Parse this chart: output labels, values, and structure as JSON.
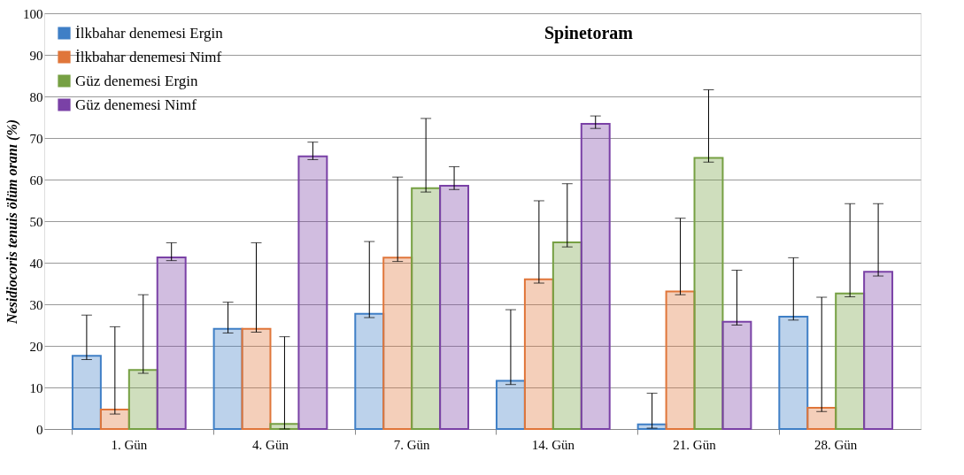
{
  "chart_data": {
    "type": "bar",
    "title": "Spinetoram",
    "ylabel": "Nesidiocoris tenuis ölüm oranı (%)",
    "categories": [
      "1. Gün",
      "4. Gün",
      "7. Gün",
      "14. Gün",
      "21. Gün",
      "28. Gün"
    ],
    "series": [
      {
        "name": "İlkbahar denemesi Ergin",
        "color": "#3f7fc6",
        "values": [
          17.6,
          24.1,
          27.7,
          11.6,
          1.1,
          27.0
        ],
        "errors": [
          [
            16.7,
            27.4
          ],
          [
            23.1,
            30.5
          ],
          [
            26.8,
            45.1
          ],
          [
            10.7,
            28.7
          ],
          [
            0.2,
            8.6
          ],
          [
            26.2,
            41.2
          ]
        ]
      },
      {
        "name": "İlkbahar denemesi Nimf",
        "color": "#e0763a",
        "values": [
          4.7,
          24.1,
          41.2,
          36.0,
          33.1,
          5.1
        ],
        "errors": [
          [
            3.6,
            24.6
          ],
          [
            23.3,
            44.8
          ],
          [
            40.3,
            60.6
          ],
          [
            35.1,
            54.9
          ],
          [
            32.3,
            50.7
          ],
          [
            4.2,
            31.7
          ]
        ]
      },
      {
        "name": "Güz denemesi Ergin",
        "color": "#76a043",
        "values": [
          14.2,
          1.2,
          57.9,
          44.9,
          65.2,
          32.6
        ],
        "errors": [
          [
            13.4,
            32.3
          ],
          [
            0,
            22.2
          ],
          [
            57.0,
            74.7
          ],
          [
            43.8,
            59.0
          ],
          [
            64.2,
            81.6
          ],
          [
            31.8,
            54.2
          ]
        ]
      },
      {
        "name": "Güz denemesi Nimf",
        "color": "#7a41a6",
        "values": [
          41.3,
          65.6,
          58.5,
          73.4,
          25.8,
          37.8
        ],
        "errors": [
          [
            40.5,
            44.8
          ],
          [
            64.8,
            69.0
          ],
          [
            57.6,
            63.1
          ],
          [
            72.3,
            75.3
          ],
          [
            25.0,
            38.2
          ],
          [
            36.8,
            54.2
          ]
        ]
      }
    ],
    "ylim": [
      0,
      100
    ],
    "yticks": [
      0,
      10,
      20,
      30,
      40,
      50,
      60,
      70,
      80,
      90,
      100
    ],
    "grid": "y",
    "legend": "top left"
  }
}
